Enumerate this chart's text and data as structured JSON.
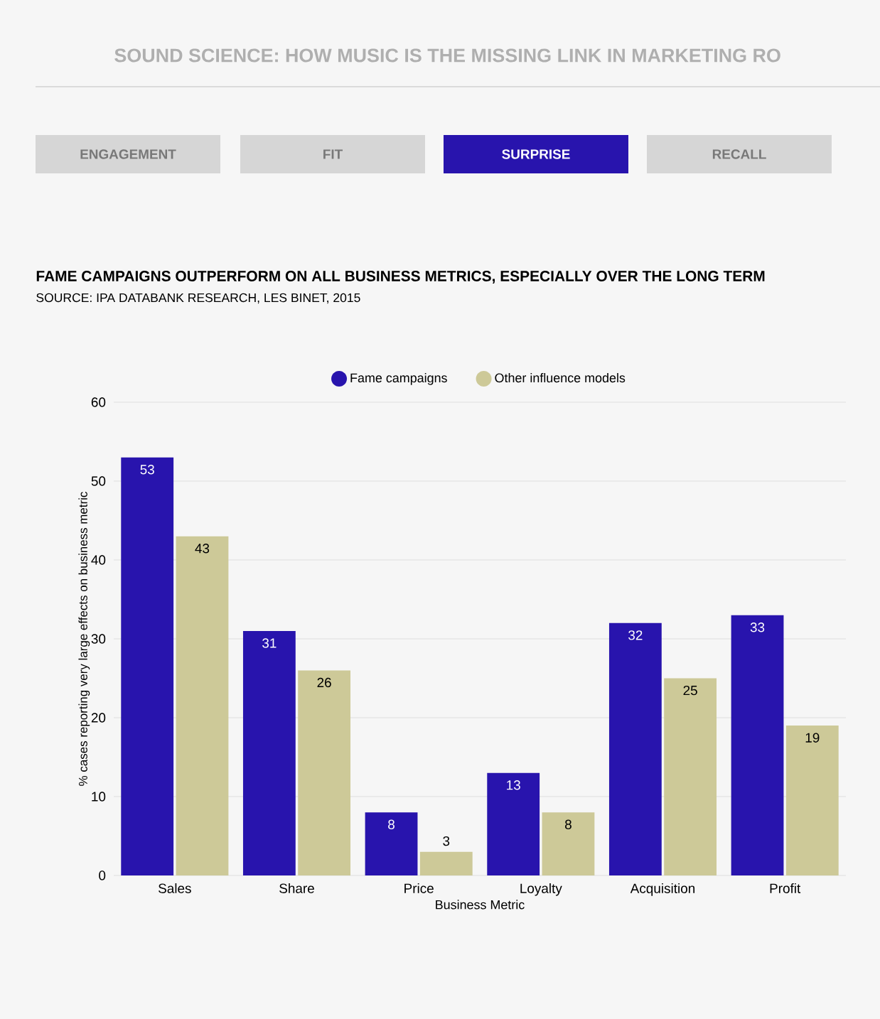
{
  "chart_data": {
    "type": "bar",
    "title": "FAME CAMPAIGNS OUTPERFORM ON ALL BUSINESS METRICS, ESPECIALLY OVER THE LONG TERM",
    "annotations": [
      "SOUND SCIENCE: HOW MUSIC IS THE MISSING LINK IN MARKETING RO",
      "ENGAGEMENT",
      "FIT",
      "SURPRISE",
      "RECALL",
      "SOURCE: IPA DATABANK RESEARCH, LES BINET, 2015"
    ],
    "xlabel": "Business Metric",
    "ylabel": "% cases reporting very large effects on business metric",
    "categories": [
      "Sales",
      "Share",
      "Price",
      "Loyalty",
      "Acquisition",
      "Profit"
    ],
    "series": [
      {
        "name": "Fame campaigns",
        "color": "#2814ad",
        "values": [
          53,
          31,
          8,
          13,
          32,
          33
        ]
      },
      {
        "name": "Other influence models",
        "color": "#cdc998",
        "values": [
          43,
          26,
          3,
          8,
          25,
          19
        ]
      }
    ],
    "ylim": [
      0,
      60
    ],
    "yticks": [
      0,
      10,
      20,
      30,
      40,
      50,
      60
    ],
    "grid": "y",
    "legend": "top",
    "data_labels": true
  }
}
